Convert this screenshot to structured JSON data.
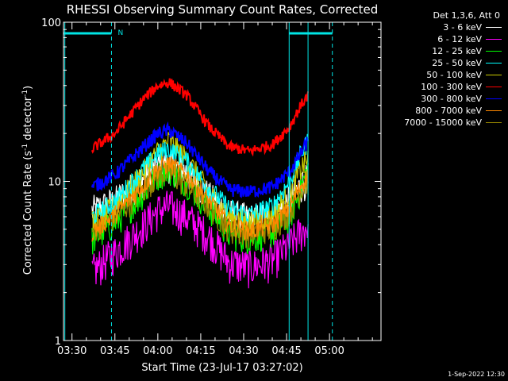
{
  "chart_data": {
    "type": "line",
    "title": "RHESSI Observing Summary Count Rates, Corrected",
    "xlabel": "Start Time (23-Jul-17 03:27:02)",
    "ylabel_main": "Corrected Count Rate (s",
    "ylabel_sup1": "-1",
    "ylabel_mid": " detector",
    "ylabel_sup2": "-1",
    "ylabel_end": ")",
    "y_scale": "log",
    "ylim": [
      1,
      100
    ],
    "y_ticks": [
      {
        "v": 1,
        "label": "1"
      },
      {
        "v": 10,
        "label": "10"
      },
      {
        "v": 100,
        "label": "100"
      }
    ],
    "x_range_minutes": [
      207.03,
      318.0
    ],
    "x_ticks": [
      {
        "m": 210,
        "label": "03:30"
      },
      {
        "m": 225,
        "label": "03:45"
      },
      {
        "m": 240,
        "label": "04:00"
      },
      {
        "m": 255,
        "label": "04:15"
      },
      {
        "m": 270,
        "label": "04:30"
      },
      {
        "m": 285,
        "label": "04:45"
      },
      {
        "m": 300,
        "label": "05:00"
      }
    ],
    "data_time_range_minutes": [
      217.0,
      292.5
    ],
    "legend_title": "Det 1,3,6, Att 0",
    "series": [
      {
        "name": "3 - 6 keV",
        "color": "#ffffff",
        "x": [
          217,
          225,
          235,
          240,
          244,
          250,
          258,
          265,
          272,
          280,
          286,
          290,
          292.5
        ],
        "y": [
          6.5,
          7.5,
          10.5,
          12.5,
          12.8,
          11.5,
          8.0,
          6.2,
          5.8,
          6.2,
          7.5,
          9.5,
          10.5
        ]
      },
      {
        "name": "6 - 12 keV",
        "color": "#ff00ff",
        "x": [
          217,
          225,
          235,
          240,
          244,
          250,
          258,
          265,
          272,
          280,
          286,
          290,
          292.5
        ],
        "y": [
          2.7,
          3.6,
          5.3,
          6.6,
          7.0,
          6.0,
          4.5,
          3.1,
          2.9,
          3.2,
          4.0,
          4.8,
          5.3
        ]
      },
      {
        "name": "12 - 25 keV",
        "color": "#00ff00",
        "x": [
          217,
          225,
          235,
          240,
          244,
          250,
          258,
          265,
          272,
          280,
          286,
          290,
          292.5
        ],
        "y": [
          4.3,
          5.5,
          8.5,
          11.0,
          12.0,
          10.0,
          6.8,
          4.7,
          4.4,
          4.8,
          6.0,
          9.0,
          12.0
        ]
      },
      {
        "name": "25 - 50 keV",
        "color": "#00ffff",
        "x": [
          217,
          225,
          235,
          240,
          244,
          250,
          258,
          265,
          272,
          280,
          286,
          290,
          292.5
        ],
        "y": [
          6.0,
          7.5,
          12.0,
          15.0,
          16.0,
          13.5,
          9.0,
          6.8,
          6.2,
          7.0,
          10.0,
          15.0,
          18.0
        ]
      },
      {
        "name": "50 - 100 keV",
        "color": "#cccc00",
        "x": [
          217,
          225,
          235,
          240,
          244,
          250,
          258,
          265,
          272,
          280,
          286,
          290,
          292.5
        ],
        "y": [
          5.5,
          7.0,
          11.5,
          15.5,
          18.0,
          14.0,
          8.5,
          6.0,
          5.6,
          6.2,
          8.5,
          12.0,
          14.0
        ]
      },
      {
        "name": "100 - 300 keV",
        "color": "#ff0000",
        "x": [
          217,
          225,
          235,
          240,
          244,
          250,
          258,
          265,
          272,
          280,
          286,
          290,
          292.5
        ],
        "y": [
          16.0,
          20.0,
          33.0,
          40.0,
          42.0,
          35.0,
          22.0,
          16.5,
          15.5,
          17.0,
          22.0,
          30.0,
          35.0
        ]
      },
      {
        "name": "300 - 800 keV",
        "color": "#0000ff",
        "x": [
          217,
          225,
          235,
          240,
          244,
          250,
          258,
          265,
          272,
          280,
          286,
          290,
          292.5
        ],
        "y": [
          9.2,
          11.0,
          16.5,
          20.0,
          21.0,
          17.5,
          11.5,
          8.9,
          8.6,
          9.2,
          11.5,
          15.0,
          18.0
        ]
      },
      {
        "name": "800 - 7000 keV",
        "color": "#ff8800",
        "x": [
          217,
          225,
          235,
          240,
          244,
          250,
          258,
          265,
          272,
          280,
          286,
          290,
          292.5
        ],
        "y": [
          4.8,
          6.2,
          9.5,
          12.0,
          13.0,
          11.0,
          7.5,
          5.3,
          4.9,
          5.3,
          6.8,
          9.5,
          11.0
        ]
      },
      {
        "name": "7000 - 15000 keV",
        "color": "#998800",
        "x": [
          217,
          225,
          235,
          240,
          244,
          250,
          258,
          265,
          272,
          280,
          286,
          290,
          292.5
        ],
        "y": [
          5.0,
          6.0,
          9.0,
          11.0,
          11.5,
          9.5,
          7.0,
          5.0,
          4.7,
          5.1,
          6.5,
          9.0,
          10.0
        ]
      }
    ],
    "night_bars": [
      {
        "start": 207.03,
        "end": 223.8,
        "label": "N"
      },
      {
        "start": 285.9,
        "end": 301.0,
        "label": ""
      }
    ],
    "vlines_solid": [
      207.5,
      285.9,
      292.5
    ],
    "vlines_dashed": [
      223.8,
      301.0
    ]
  },
  "footer": "1-Sep-2022 12:30",
  "colors": {
    "background": "#000000",
    "axes": "#ffffff",
    "night_bar": "#00e5e5"
  }
}
